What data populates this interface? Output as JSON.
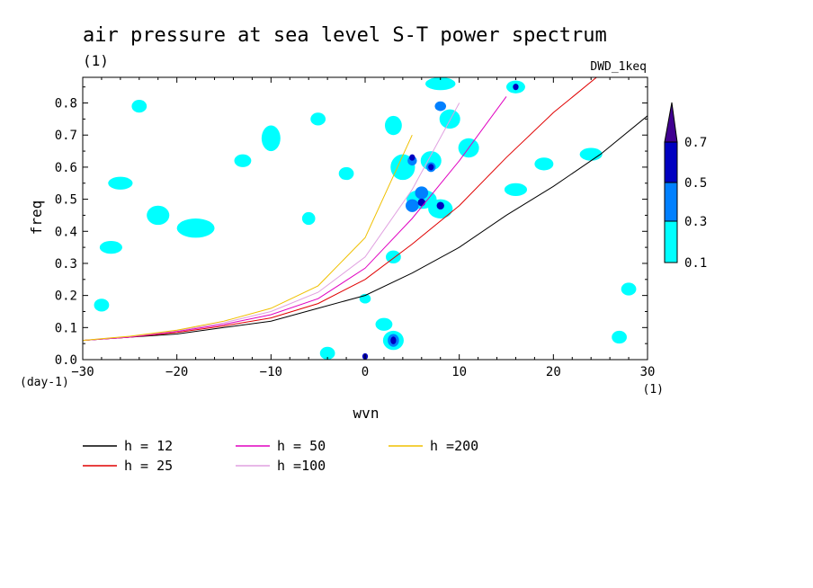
{
  "chart_data": {
    "type": "line",
    "title": "air pressure at sea level S-T power spectrum",
    "subtitle": "(1)",
    "dataset_label": "DWD_1keq",
    "xlabel": "wvn",
    "x_unit": "(1)",
    "ylabel": "freq",
    "y_unit": "(day-1)",
    "xlim": [
      -30,
      30
    ],
    "ylim": [
      0,
      0.88
    ],
    "x_ticks": [
      -30,
      -20,
      -10,
      0,
      10,
      20,
      30
    ],
    "y_ticks": [
      0.0,
      0.1,
      0.2,
      0.3,
      0.4,
      0.5,
      0.6,
      0.7,
      0.8
    ],
    "x": [
      -30,
      -25,
      -20,
      -15,
      -10,
      -5,
      0,
      5,
      10,
      15,
      20,
      25,
      30
    ],
    "series": [
      {
        "name": "h = 12",
        "label": "h = 12",
        "color": "#000000",
        "values": [
          0.06,
          0.07,
          0.08,
          0.1,
          0.12,
          0.16,
          0.2,
          0.27,
          0.35,
          0.45,
          0.54,
          0.64,
          0.76
        ]
      },
      {
        "name": "h = 25",
        "label": "h = 25",
        "color": "#e00000",
        "values": [
          0.06,
          0.07,
          0.085,
          0.105,
          0.13,
          0.175,
          0.25,
          0.36,
          0.48,
          0.63,
          0.77,
          0.89,
          null
        ]
      },
      {
        "name": "h = 50",
        "label": "h = 50",
        "color": "#e000c0",
        "values": [
          0.06,
          0.07,
          0.088,
          0.11,
          0.14,
          0.19,
          0.285,
          0.44,
          0.62,
          0.82,
          null,
          null,
          null
        ]
      },
      {
        "name": "h =100",
        "label": "h =100",
        "color": "#e0a0e0",
        "values": [
          0.06,
          0.072,
          0.09,
          0.115,
          0.15,
          0.21,
          0.32,
          0.53,
          0.8,
          null,
          null,
          null,
          null
        ]
      },
      {
        "name": "h =200",
        "label": "h =200",
        "color": "#f0c000",
        "values": [
          0.06,
          0.073,
          0.092,
          0.12,
          0.16,
          0.23,
          0.38,
          0.7,
          null,
          null,
          null,
          null,
          null
        ]
      }
    ],
    "contour_levels": [
      0.1,
      0.3,
      0.5,
      0.7
    ],
    "contour_level_labels": [
      "0.1",
      "0.3",
      "0.5",
      "0.7"
    ],
    "contour_colors": [
      "#00ffff",
      "#0080ff",
      "#0000c0",
      "#400090"
    ],
    "contour_patches": [
      {
        "x": -18,
        "y": 0.41,
        "rx": 2.0,
        "ry": 0.03,
        "level": 0
      },
      {
        "x": -27,
        "y": 0.35,
        "rx": 1.2,
        "ry": 0.02,
        "level": 0
      },
      {
        "x": -26,
        "y": 0.55,
        "rx": 1.3,
        "ry": 0.02,
        "level": 0
      },
      {
        "x": -22,
        "y": 0.45,
        "rx": 1.2,
        "ry": 0.03,
        "level": 0
      },
      {
        "x": -13,
        "y": 0.62,
        "rx": 0.9,
        "ry": 0.02,
        "level": 0
      },
      {
        "x": -10,
        "y": 0.69,
        "rx": 1.0,
        "ry": 0.04,
        "level": 0
      },
      {
        "x": -5,
        "y": 0.75,
        "rx": 0.8,
        "ry": 0.02,
        "level": 0
      },
      {
        "x": -2,
        "y": 0.58,
        "rx": 0.8,
        "ry": 0.02,
        "level": 0
      },
      {
        "x": -28,
        "y": 0.17,
        "rx": 0.8,
        "ry": 0.02,
        "level": 0
      },
      {
        "x": -24,
        "y": 0.79,
        "rx": 0.8,
        "ry": 0.02,
        "level": 0
      },
      {
        "x": -6,
        "y": 0.44,
        "rx": 0.7,
        "ry": 0.02,
        "level": 0
      },
      {
        "x": -4,
        "y": 0.02,
        "rx": 0.8,
        "ry": 0.02,
        "level": 0
      },
      {
        "x": 3,
        "y": 0.73,
        "rx": 0.9,
        "ry": 0.03,
        "level": 0
      },
      {
        "x": 4,
        "y": 0.6,
        "rx": 1.3,
        "ry": 0.04,
        "level": 0
      },
      {
        "x": 6,
        "y": 0.5,
        "rx": 1.6,
        "ry": 0.03,
        "level": 0
      },
      {
        "x": 8,
        "y": 0.47,
        "rx": 1.3,
        "ry": 0.03,
        "level": 0
      },
      {
        "x": 7,
        "y": 0.62,
        "rx": 1.1,
        "ry": 0.03,
        "level": 0
      },
      {
        "x": 9,
        "y": 0.75,
        "rx": 1.1,
        "ry": 0.03,
        "level": 0
      },
      {
        "x": 8,
        "y": 0.86,
        "rx": 1.6,
        "ry": 0.02,
        "level": 0
      },
      {
        "x": 11,
        "y": 0.66,
        "rx": 1.1,
        "ry": 0.03,
        "level": 0
      },
      {
        "x": 16,
        "y": 0.85,
        "rx": 1.0,
        "ry": 0.02,
        "level": 0
      },
      {
        "x": 3,
        "y": 0.32,
        "rx": 0.8,
        "ry": 0.02,
        "level": 0
      },
      {
        "x": 3,
        "y": 0.06,
        "rx": 1.1,
        "ry": 0.03,
        "level": 0
      },
      {
        "x": 2,
        "y": 0.11,
        "rx": 0.9,
        "ry": 0.02,
        "level": 0
      },
      {
        "x": 0,
        "y": 0.19,
        "rx": 0.6,
        "ry": 0.015,
        "level": 0
      },
      {
        "x": 16,
        "y": 0.53,
        "rx": 1.2,
        "ry": 0.02,
        "level": 0
      },
      {
        "x": 24,
        "y": 0.64,
        "rx": 1.2,
        "ry": 0.02,
        "level": 0
      },
      {
        "x": 27,
        "y": 0.07,
        "rx": 0.8,
        "ry": 0.02,
        "level": 0
      },
      {
        "x": 28,
        "y": 0.22,
        "rx": 0.8,
        "ry": 0.02,
        "level": 0
      },
      {
        "x": 19,
        "y": 0.61,
        "rx": 1.0,
        "ry": 0.02,
        "level": 0
      },
      {
        "x": 7,
        "y": 0.6,
        "rx": 0.5,
        "ry": 0.015,
        "level": 1
      },
      {
        "x": 5,
        "y": 0.62,
        "rx": 0.5,
        "ry": 0.015,
        "level": 1
      },
      {
        "x": 6,
        "y": 0.52,
        "rx": 0.7,
        "ry": 0.02,
        "level": 1
      },
      {
        "x": 5,
        "y": 0.48,
        "rx": 0.7,
        "ry": 0.02,
        "level": 1
      },
      {
        "x": 8,
        "y": 0.79,
        "rx": 0.6,
        "ry": 0.015,
        "level": 1
      },
      {
        "x": 3,
        "y": 0.06,
        "rx": 0.6,
        "ry": 0.02,
        "level": 1
      },
      {
        "x": 6,
        "y": 0.49,
        "rx": 0.4,
        "ry": 0.012,
        "level": 2
      },
      {
        "x": 7,
        "y": 0.6,
        "rx": 0.3,
        "ry": 0.01,
        "level": 2
      },
      {
        "x": 8,
        "y": 0.48,
        "rx": 0.4,
        "ry": 0.012,
        "level": 2
      },
      {
        "x": 5,
        "y": 0.63,
        "rx": 0.3,
        "ry": 0.01,
        "level": 2
      },
      {
        "x": 3,
        "y": 0.06,
        "rx": 0.3,
        "ry": 0.012,
        "level": 2
      },
      {
        "x": 0,
        "y": 0.01,
        "rx": 0.3,
        "ry": 0.01,
        "level": 2
      },
      {
        "x": 16,
        "y": 0.85,
        "rx": 0.3,
        "ry": 0.01,
        "level": 2
      }
    ],
    "grid": false,
    "legend_position": "bottom"
  }
}
